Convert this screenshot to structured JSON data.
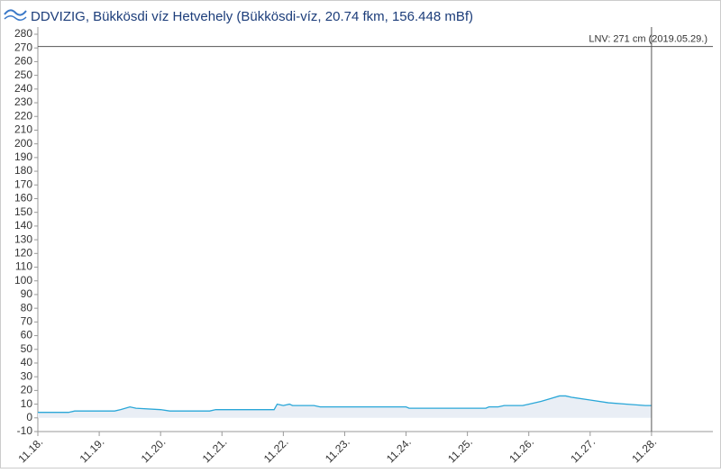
{
  "chart_data": {
    "type": "line",
    "title": "DDVIZIG, Bükkösdi víz Hetvehely (Bükkösdi-víz, 20.74 fkm, 156.448 mBf)",
    "x": [
      18.0,
      18.5,
      18.6,
      19.25,
      19.35,
      19.5,
      19.6,
      20.0,
      20.15,
      20.8,
      20.9,
      21.5,
      21.85,
      21.9,
      22.0,
      22.1,
      22.15,
      22.5,
      22.6,
      23.0,
      24.0,
      24.05,
      25.0,
      25.3,
      25.35,
      25.5,
      25.6,
      25.9,
      26.0,
      26.2,
      26.35,
      26.5,
      26.6,
      26.7,
      27.0,
      27.3,
      27.6,
      27.9,
      28.0
    ],
    "series": [
      {
        "color": "#2aa7d8",
        "values": [
          4,
          4,
          5,
          5,
          6,
          8,
          7,
          6,
          5,
          5,
          6,
          6,
          6,
          10,
          9,
          10,
          9,
          9,
          8,
          8,
          8,
          7,
          7,
          7,
          8,
          8,
          9,
          9,
          10,
          12,
          14,
          16,
          16,
          15,
          13,
          11,
          10,
          9,
          9
        ]
      }
    ],
    "xlim": [
      18,
      29
    ],
    "xticks": [
      {
        "value": 18,
        "label": "11.18."
      },
      {
        "value": 19,
        "label": "11.19."
      },
      {
        "value": 20,
        "label": "11.20."
      },
      {
        "value": 21,
        "label": "11.21."
      },
      {
        "value": 22,
        "label": "11.22."
      },
      {
        "value": 23,
        "label": "11.23."
      },
      {
        "value": 24,
        "label": "11.24."
      },
      {
        "value": 25,
        "label": "11.25."
      },
      {
        "value": 26,
        "label": "11.26."
      },
      {
        "value": 27,
        "label": "11.27."
      },
      {
        "value": 28,
        "label": "11.28."
      }
    ],
    "ylim": [
      -10,
      280
    ],
    "yticks": [
      -10,
      0,
      10,
      20,
      30,
      40,
      50,
      60,
      70,
      80,
      90,
      100,
      110,
      120,
      130,
      140,
      150,
      160,
      170,
      180,
      190,
      200,
      210,
      220,
      230,
      240,
      250,
      260,
      270,
      280
    ],
    "grid": false,
    "reference_lines": [
      {
        "value": 271,
        "label": "LNV: 271 cm (2019.05.29.)"
      }
    ],
    "now_x": 28
  }
}
